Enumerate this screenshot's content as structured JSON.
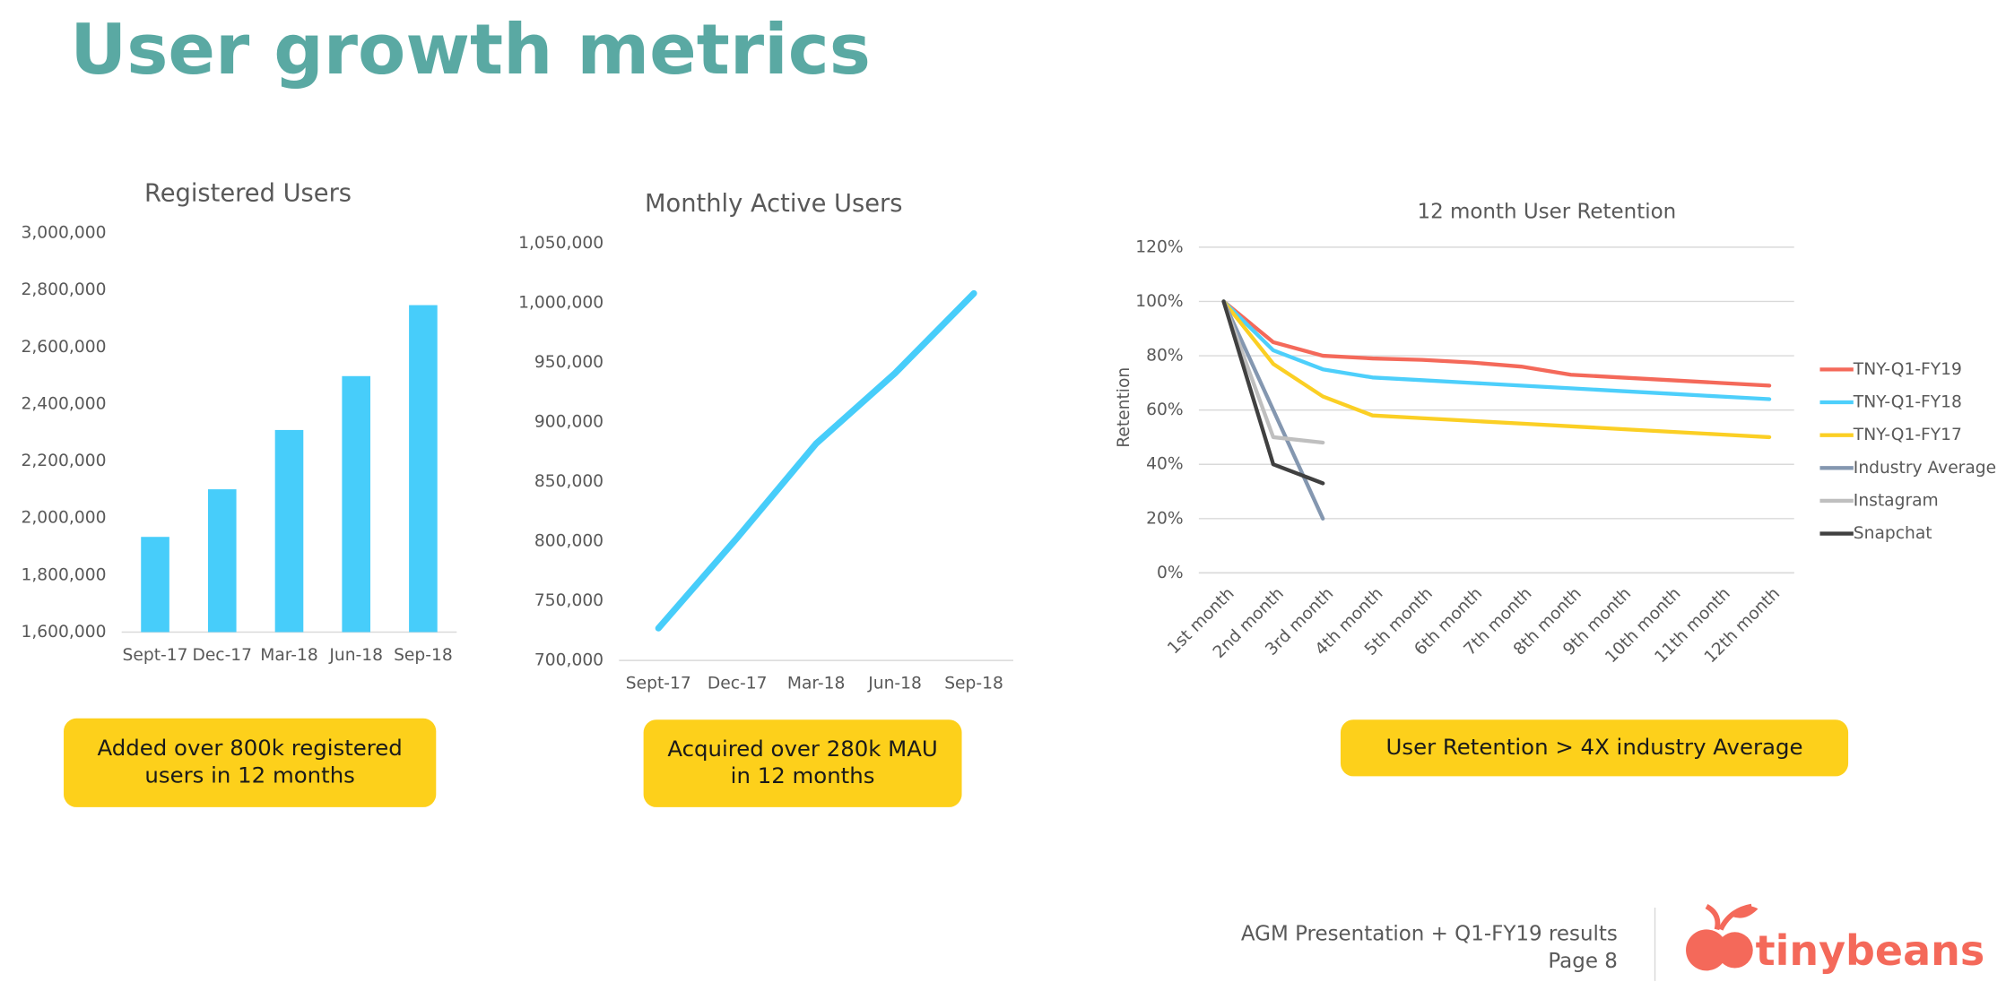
{
  "title": "User growth metrics",
  "chart_data": [
    {
      "type": "bar",
      "title": "Registered Users",
      "categories": [
        "Sept-17",
        "Dec-17",
        "Mar-18",
        "Jun-18",
        "Sep-18"
      ],
      "values": [
        1934000,
        2101000,
        2309000,
        2498000,
        2747000
      ],
      "color": "#47cdfa",
      "ylim": [
        1600000,
        3000000
      ],
      "yticks": [
        {
          "value": 1600000,
          "label": "1,600,000"
        },
        {
          "value": 1800000,
          "label": "1,800,000"
        },
        {
          "value": 2000000,
          "label": "2,000,000"
        },
        {
          "value": 2200000,
          "label": "2,200,000"
        },
        {
          "value": 2400000,
          "label": "2,400,000"
        },
        {
          "value": 2600000,
          "label": "2,600,000"
        },
        {
          "value": 2800000,
          "label": "2,800,000"
        },
        {
          "value": 3000000,
          "label": "3,000,000"
        }
      ],
      "grid": false
    },
    {
      "type": "line",
      "title": "Monthly Active Users",
      "categories": [
        "Sept-17",
        "Dec-17",
        "Mar-18",
        "Jun-18",
        "Sep-18"
      ],
      "series": [
        {
          "name": "Monthly Active Users",
          "color": "#47cdfa",
          "values": [
            727000,
            803000,
            882000,
            941000,
            1008000
          ]
        }
      ],
      "ylim": [
        700000,
        1050000
      ],
      "yticks": [
        {
          "value": 700000,
          "label": "700,000"
        },
        {
          "value": 750000,
          "label": "750,000"
        },
        {
          "value": 800000,
          "label": "800,000"
        },
        {
          "value": 850000,
          "label": "850,000"
        },
        {
          "value": 900000,
          "label": "900,000"
        },
        {
          "value": 950000,
          "label": "950,000"
        },
        {
          "value": 1000000,
          "label": "1,000,000"
        },
        {
          "value": 1050000,
          "label": "1,050,000"
        }
      ],
      "grid": false,
      "legend": false
    },
    {
      "type": "line",
      "title": "12 month User Retention",
      "y_label": "Retention",
      "categories": [
        "1st month",
        "2nd month",
        "3rd month",
        "4th month",
        "5th month",
        "6th month",
        "7th month",
        "8th month",
        "9th month",
        "10th month",
        "11th month",
        "12th month"
      ],
      "series": [
        {
          "name": "TNY-Q1-FY19",
          "color": "#f4695a",
          "values": [
            100,
            85,
            80,
            79,
            78.5,
            77.5,
            76,
            73,
            72,
            71,
            70,
            69
          ]
        },
        {
          "name": "TNY-Q1-FY18",
          "color": "#4dcffb",
          "values": [
            100,
            82,
            75,
            72,
            71,
            70,
            69,
            68,
            67,
            66,
            65,
            64
          ]
        },
        {
          "name": "TNY-Q1-FY17",
          "color": "#fbcf24",
          "values": [
            100,
            77,
            65,
            58,
            57,
            56,
            55,
            54,
            53,
            52,
            51,
            50
          ]
        },
        {
          "name": "Industry Average",
          "color": "#8497b0",
          "values": [
            100,
            60,
            20,
            null,
            null,
            null,
            null,
            null,
            null,
            null,
            null,
            null
          ]
        },
        {
          "name": "Instagram",
          "color": "#bfbfbf",
          "values": [
            100,
            50,
            48,
            null,
            null,
            null,
            null,
            null,
            null,
            null,
            null,
            null
          ]
        },
        {
          "name": "Snapchat",
          "color": "#404040",
          "values": [
            100,
            40,
            33,
            null,
            null,
            null,
            null,
            null,
            null,
            null,
            null,
            null
          ]
        }
      ],
      "ylim": [
        0,
        120
      ],
      "yticks": [
        {
          "value": 0,
          "label": "0%"
        },
        {
          "value": 20,
          "label": "20%"
        },
        {
          "value": 40,
          "label": "40%"
        },
        {
          "value": 60,
          "label": "60%"
        },
        {
          "value": 80,
          "label": "80%"
        },
        {
          "value": 100,
          "label": "100%"
        },
        {
          "value": 120,
          "label": "120%"
        }
      ],
      "grid": true,
      "legend": "right"
    }
  ],
  "callouts": [
    {
      "lines": [
        "Added over 800k registered",
        "users in 12 months"
      ]
    },
    {
      "lines": [
        "Acquired over 280k MAU",
        "in 12 months"
      ]
    },
    {
      "lines": [
        "User Retention > 4X industry Average"
      ]
    }
  ],
  "footer": {
    "lines": [
      "AGM Presentation + Q1-FY19 results",
      "Page 8"
    ],
    "logo": "tinybeans"
  }
}
